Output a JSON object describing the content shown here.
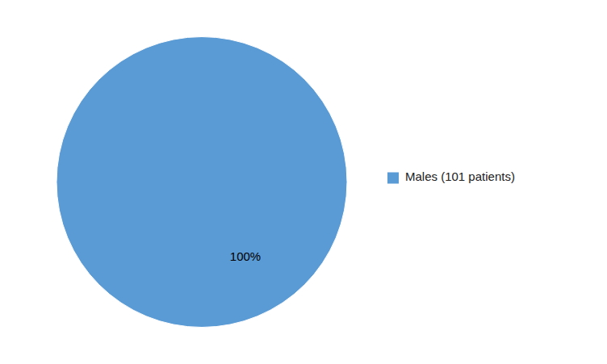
{
  "chart_data": {
    "type": "pie",
    "categories": [
      "Males (101 patients)"
    ],
    "values": [
      100
    ],
    "colors": [
      "#5b9bd5"
    ],
    "value_labels": [
      "100%"
    ],
    "data_labels": true,
    "legend": "right"
  }
}
